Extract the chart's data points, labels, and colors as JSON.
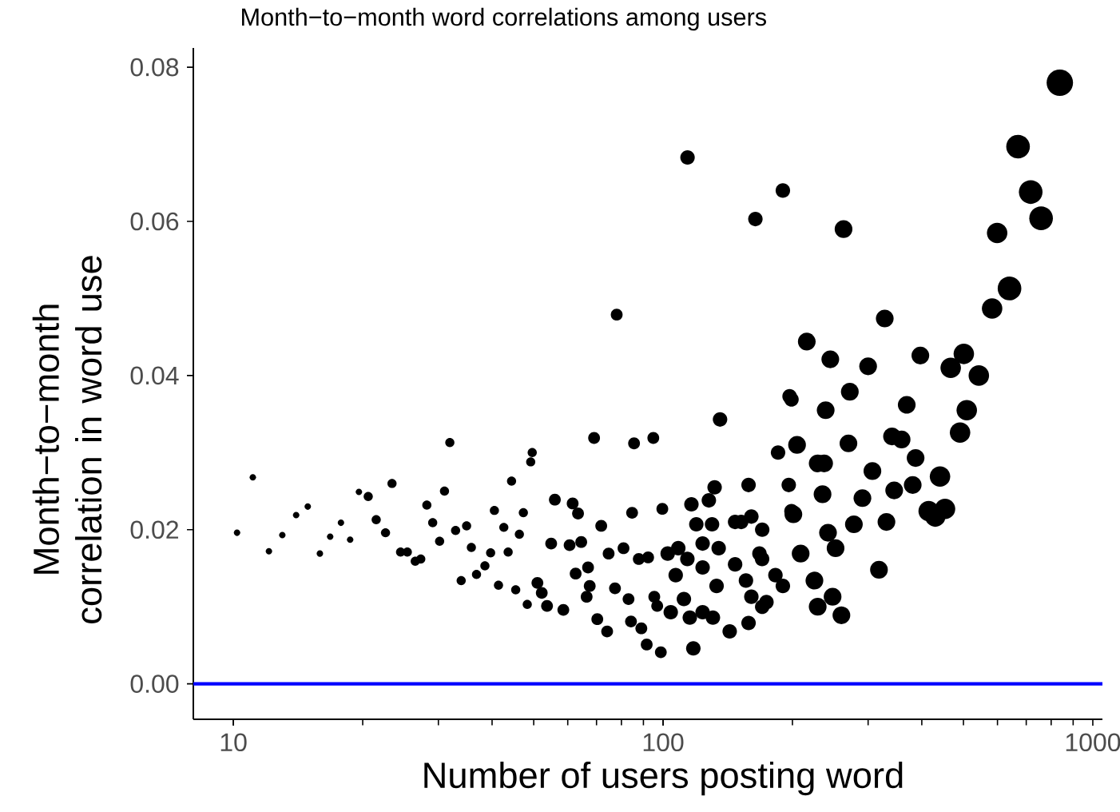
{
  "chart_data": {
    "type": "bubble",
    "title": "Month−to−month word correlations among users",
    "xlabel": "Number of users posting word",
    "ylabel": "Month−to−month correlation in word use",
    "log": "x",
    "marker": "circle",
    "color": "#000000",
    "xlim": [
      8.07,
      1053
    ],
    "ylim": [
      -0.0046,
      0.0825
    ],
    "xticks": [
      10,
      100,
      1000
    ],
    "yticks": [
      {
        "value": 0,
        "label": "0.00"
      },
      {
        "value": 0.02,
        "label": "0.02"
      },
      {
        "value": 0.04,
        "label": "0.04"
      },
      {
        "value": 0.06,
        "label": "0.06"
      },
      {
        "value": 0.08,
        "label": "0.08"
      }
    ],
    "ref_lines": [
      {
        "axis": "y",
        "value": 0,
        "color": "#0000ff"
      }
    ],
    "x": [
      10.2,
      11.1,
      12.1,
      13.0,
      14.0,
      14.9,
      15.9,
      16.8,
      17.8,
      18.7,
      19.6,
      20.6,
      21.5,
      22.6,
      23.4,
      24.5,
      25.4,
      26.5,
      27.3,
      28.2,
      29.1,
      30.2,
      31.0,
      31.9,
      32.9,
      34.9,
      33.9,
      35.8,
      36.8,
      38.5,
      39.7,
      40.5,
      41.4,
      42.6,
      43.6,
      44.4,
      45.4,
      49.6,
      49.2,
      47.3,
      46.3,
      51.0,
      52.2,
      48.3,
      53.7,
      58.6,
      56.0,
      61.6,
      63.4,
      54.9,
      60.6,
      64.5,
      69.1,
      71.8,
      62.6,
      66.9,
      67.5,
      66.4,
      70.3,
      74.1,
      74.7,
      77.3,
      83.1,
      80.9,
      84.7,
      85.6,
      94.9,
      87.8,
      92.3,
      84.2,
      89.0,
      91.6,
      98.8,
      95.4,
      96.9,
      99.6,
      102.5,
      108.5,
      113.9,
      107.0,
      111.8,
      104.2,
      115.4,
      117.6,
      116.4,
      119.5,
      130.0,
      131.8,
      127.8,
      135.7,
      123.6,
      134.7,
      123.6,
      133.2,
      123.6,
      142.9,
      130.6,
      147.1,
      158.1,
      160.5,
      170.1,
      147.1,
      155.9,
      167.6,
      160.5,
      170.1,
      158.1,
      182.6,
      185.2,
      196.1,
      199,
      199,
      838,
      670,
      717,
      758,
      599,
      640,
      583,
      328,
      190,
      164,
      263,
      114,
      78,
      216,
      245,
      300,
      397,
      467,
      501,
      543,
      509,
      491,
      197,
      272,
      239,
      369,
      205,
      270,
      229,
      237,
      341,
      359,
      387,
      307,
      441,
      235,
      291,
      345,
      381,
      415,
      453,
      430,
      278,
      331,
      242,
      252,
      201,
      152,
      318,
      209,
      225,
      248,
      260,
      229,
      190,
      174,
      170
    ],
    "values": [
      0.0196,
      0.0268,
      0.0172,
      0.0193,
      0.0219,
      0.023,
      0.0169,
      0.0191,
      0.0209,
      0.0187,
      0.0249,
      0.0243,
      0.0213,
      0.0196,
      0.026,
      0.0171,
      0.0171,
      0.0159,
      0.0162,
      0.0232,
      0.0209,
      0.0185,
      0.025,
      0.0313,
      0.0199,
      0.0205,
      0.0134,
      0.0177,
      0.0142,
      0.0153,
      0.017,
      0.0225,
      0.0128,
      0.0203,
      0.0171,
      0.0263,
      0.0122,
      0.03,
      0.0288,
      0.0222,
      0.0194,
      0.0131,
      0.0118,
      0.0103,
      0.0101,
      0.0096,
      0.0239,
      0.0234,
      0.0221,
      0.0182,
      0.018,
      0.0184,
      0.0319,
      0.0205,
      0.0143,
      0.0151,
      0.0127,
      0.0113,
      0.0084,
      0.0068,
      0.0169,
      0.0124,
      0.011,
      0.0176,
      0.0222,
      0.0312,
      0.0319,
      0.0162,
      0.0164,
      0.0081,
      0.0072,
      0.0051,
      0.0041,
      0.0113,
      0.0101,
      0.0227,
      0.0169,
      0.0176,
      0.0162,
      0.0141,
      0.011,
      0.0093,
      0.0086,
      0.0046,
      0.0233,
      0.0207,
      0.0207,
      0.0255,
      0.0238,
      0.0343,
      0.0182,
      0.0176,
      0.0151,
      0.0127,
      0.0093,
      0.0068,
      0.0086,
      0.021,
      0.0258,
      0.0217,
      0.02,
      0.0155,
      0.0134,
      0.0169,
      0.0113,
      0.01,
      0.0079,
      0.0141,
      0.03,
      0.0258,
      0.0369,
      0.0224,
      0.078,
      0.0697,
      0.0638,
      0.0604,
      0.0585,
      0.0513,
      0.0487,
      0.0474,
      0.064,
      0.0603,
      0.059,
      0.0683,
      0.0479,
      0.0444,
      0.0421,
      0.0412,
      0.0426,
      0.041,
      0.0428,
      0.04,
      0.0355,
      0.0326,
      0.0373,
      0.0379,
      0.0355,
      0.0362,
      0.031,
      0.0312,
      0.0286,
      0.0286,
      0.0321,
      0.0317,
      0.0293,
      0.0276,
      0.0269,
      0.0246,
      0.0241,
      0.0251,
      0.0258,
      0.0224,
      0.0227,
      0.0217,
      0.0207,
      0.021,
      0.0196,
      0.0176,
      0.022,
      0.021,
      0.0148,
      0.0169,
      0.0134,
      0.0113,
      0.0089,
      0.01,
      0.0127,
      0.0106,
      0.0162
    ],
    "sizes": [
      0.06,
      0.06,
      0.06,
      0.06,
      0.06,
      0.06,
      0.06,
      0.06,
      0.06,
      0.06,
      0.06,
      0.12,
      0.12,
      0.12,
      0.12,
      0.12,
      0.12,
      0.12,
      0.12,
      0.12,
      0.12,
      0.12,
      0.12,
      0.12,
      0.12,
      0.12,
      0.12,
      0.12,
      0.12,
      0.12,
      0.12,
      0.12,
      0.12,
      0.12,
      0.12,
      0.12,
      0.12,
      0.12,
      0.12,
      0.12,
      0.12,
      0.2,
      0.2,
      0.12,
      0.2,
      0.2,
      0.2,
      0.2,
      0.2,
      0.2,
      0.2,
      0.2,
      0.2,
      0.2,
      0.2,
      0.2,
      0.2,
      0.2,
      0.2,
      0.2,
      0.2,
      0.2,
      0.2,
      0.2,
      0.2,
      0.2,
      0.2,
      0.2,
      0.2,
      0.2,
      0.2,
      0.2,
      0.2,
      0.2,
      0.2,
      0.2,
      0.3,
      0.3,
      0.3,
      0.3,
      0.3,
      0.3,
      0.3,
      0.3,
      0.3,
      0.3,
      0.3,
      0.3,
      0.3,
      0.3,
      0.3,
      0.3,
      0.3,
      0.3,
      0.3,
      0.3,
      0.3,
      0.3,
      0.3,
      0.3,
      0.3,
      0.3,
      0.3,
      0.3,
      0.3,
      0.3,
      0.3,
      0.3,
      0.3,
      0.3,
      0.3,
      0.3,
      1,
      0.8,
      0.8,
      0.8,
      0.6,
      0.8,
      0.6,
      0.45,
      0.3,
      0.3,
      0.45,
      0.3,
      0.2,
      0.45,
      0.45,
      0.45,
      0.45,
      0.6,
      0.6,
      0.6,
      0.6,
      0.6,
      0.3,
      0.45,
      0.45,
      0.45,
      0.45,
      0.45,
      0.45,
      0.45,
      0.45,
      0.45,
      0.45,
      0.45,
      0.6,
      0.45,
      0.45,
      0.45,
      0.45,
      0.6,
      0.6,
      0.6,
      0.45,
      0.45,
      0.45,
      0.45,
      0.45,
      0.3,
      0.45,
      0.45,
      0.45,
      0.45,
      0.45,
      0.45,
      0.3,
      0.3,
      0.3
    ]
  }
}
